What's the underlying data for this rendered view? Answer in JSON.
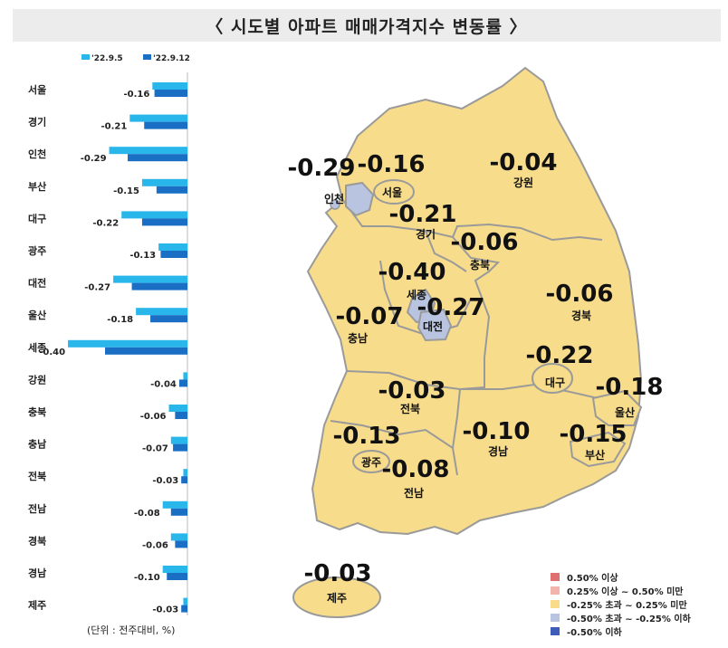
{
  "title": "〈 시도별 아파트 매매가격지수 변동률 〉",
  "unit_note": "(단위 : 전주대비, %)",
  "colors": {
    "series_prev": "#29b6ea",
    "series_curr": "#1a6fc4",
    "map_fill": "#f7dc8b",
    "map_border": "#9a9a9a",
    "map_neg_blue": "#b9c4e0"
  },
  "chart_data": {
    "type": "bar",
    "orientation": "horizontal",
    "categories": [
      "서울",
      "경기",
      "인천",
      "부산",
      "대구",
      "광주",
      "대전",
      "울산",
      "세종",
      "강원",
      "충북",
      "충남",
      "전북",
      "전남",
      "경북",
      "경남",
      "제주"
    ],
    "series": [
      {
        "name": "'22.9.5",
        "values": [
          -0.17,
          -0.28,
          -0.38,
          -0.22,
          -0.32,
          -0.14,
          -0.36,
          -0.25,
          -0.58,
          -0.02,
          -0.09,
          -0.08,
          -0.02,
          -0.12,
          -0.08,
          -0.12,
          -0.02
        ]
      },
      {
        "name": "'22.9.12",
        "values": [
          -0.16,
          -0.21,
          -0.29,
          -0.15,
          -0.22,
          -0.13,
          -0.27,
          -0.18,
          -0.4,
          -0.04,
          -0.06,
          -0.07,
          -0.03,
          -0.08,
          -0.06,
          -0.1,
          -0.03
        ]
      }
    ],
    "data_labels": [
      "-0.16",
      "-0.21",
      "-0.29",
      "-0.15",
      "-0.22",
      "-0.13",
      "-0.27",
      "-0.18",
      "-0.40",
      "-0.04",
      "-0.06",
      "-0.07",
      "-0.03",
      "-0.08",
      "-0.06",
      "-0.10",
      "-0.03"
    ],
    "xlim": [
      -0.6,
      0
    ]
  },
  "map": {
    "regions": [
      {
        "name": "서울",
        "value": "-0.16"
      },
      {
        "name": "인천",
        "value": "-0.29"
      },
      {
        "name": "경기",
        "value": "-0.21"
      },
      {
        "name": "강원",
        "value": "-0.04"
      },
      {
        "name": "충북",
        "value": "-0.06"
      },
      {
        "name": "세종",
        "value": "-0.40"
      },
      {
        "name": "대전",
        "value": "-0.27"
      },
      {
        "name": "충남",
        "value": "-0.07"
      },
      {
        "name": "경북",
        "value": "-0.06"
      },
      {
        "name": "대구",
        "value": "-0.22"
      },
      {
        "name": "울산",
        "value": "-0.18"
      },
      {
        "name": "전북",
        "value": "-0.03"
      },
      {
        "name": "경남",
        "value": "-0.10"
      },
      {
        "name": "부산",
        "value": "-0.15"
      },
      {
        "name": "광주",
        "value": "-0.13"
      },
      {
        "name": "전남",
        "value": "-0.08"
      },
      {
        "name": "제주",
        "value": "-0.03"
      }
    ],
    "legend": [
      {
        "label": "0.50% 이상",
        "color": "#e07070"
      },
      {
        "label": "0.25% 이상 ~ 0.50% 미만",
        "color": "#f2b5ae"
      },
      {
        "label": "-0.25% 초과 ~ 0.25% 미만",
        "color": "#f7dc8b"
      },
      {
        "label": "-0.50% 초과 ~ -0.25% 이하",
        "color": "#b9c4e0"
      },
      {
        "label": "-0.50% 이하",
        "color": "#3d5db8"
      }
    ]
  }
}
